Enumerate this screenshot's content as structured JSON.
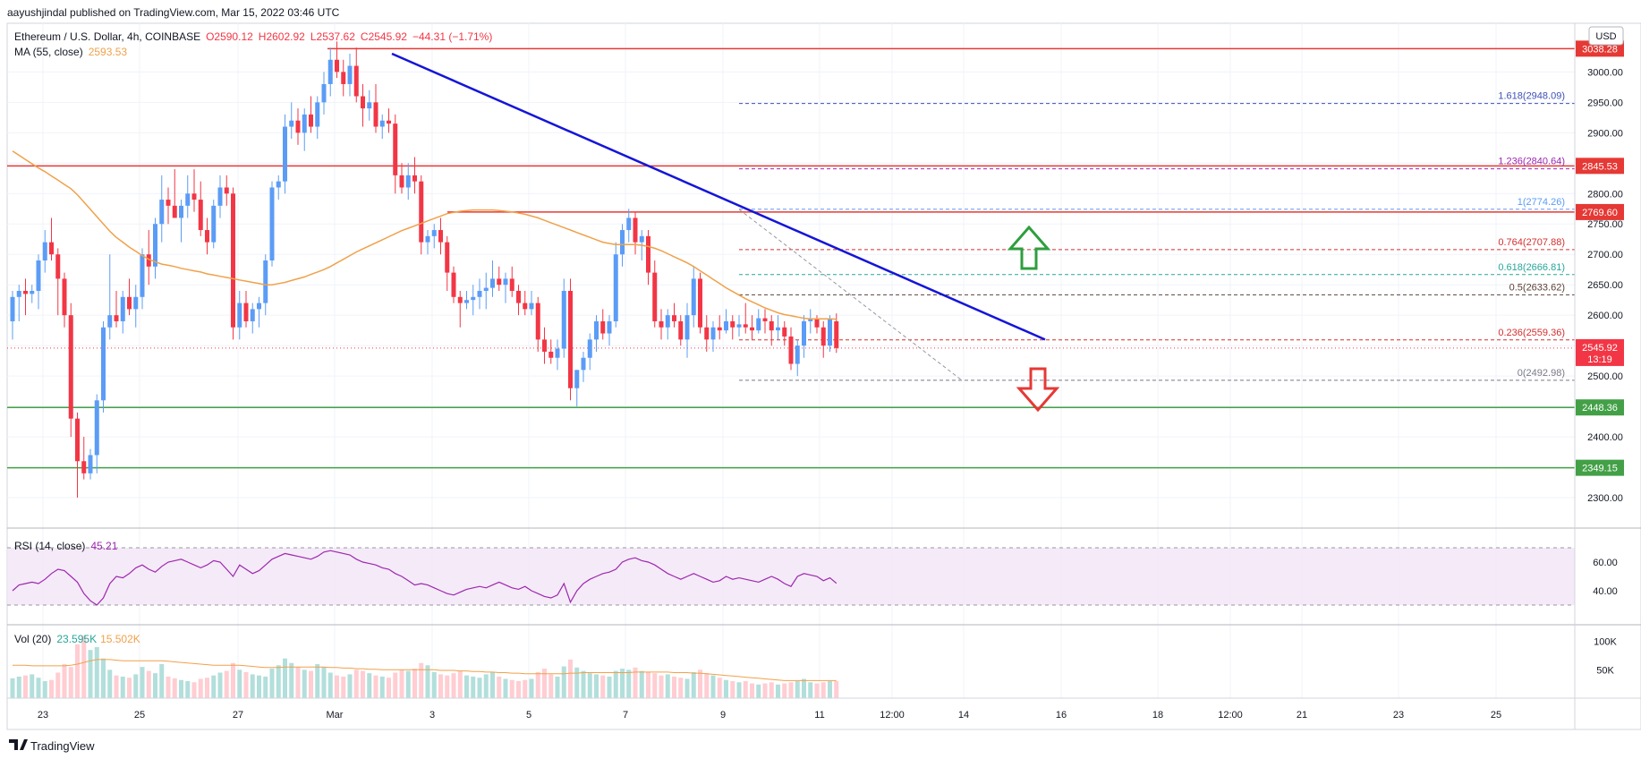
{
  "header": {
    "publish_line": "aayushjindal published on TradingView.com, Mar 15, 2022 03:46 UTC",
    "symbol_line": "Ethereum / U.S. Dollar, 4h, COINBASE",
    "open": "O2590.12",
    "high": "H2602.92",
    "low": "L2537.62",
    "close": "C2545.92",
    "change": "−44.31 (−1.71%)",
    "ma_label": "MA (55, close)",
    "ma_value": "2593.53",
    "currency_button": "USD"
  },
  "footer": {
    "brand": "TradingView"
  },
  "colors": {
    "up": "#5b9cf6",
    "down": "#f23645",
    "ma": "#f0a14a",
    "trendline": "#1515d8",
    "resistance": "#e53935",
    "support": "#43a047",
    "rsi": "#9c27b0",
    "fib_blue": "#3f51b5",
    "fib_red": "#d32f2f",
    "fib_green": "#26a69a"
  },
  "chart_data": {
    "type": "candlestick",
    "title": "Ethereum / U.S. Dollar, 4h, COINBASE",
    "ylim": [
      2250,
      3080
    ],
    "price_ticks": [
      2300,
      2350,
      2400,
      2450,
      2500,
      2550,
      2600,
      2650,
      2700,
      2750,
      2800,
      2850,
      2900,
      2950,
      3000
    ],
    "date_ticks": [
      "23",
      "25",
      "27",
      "Mar",
      "3",
      "5",
      "7",
      "9",
      "11",
      "12:00",
      "14",
      "16",
      "18",
      "12:00",
      "21",
      "23",
      "25"
    ],
    "candles": [
      [
        2590,
        2640,
        2560,
        2630
      ],
      [
        2630,
        2650,
        2590,
        2640
      ],
      [
        2640,
        2660,
        2600,
        2635
      ],
      [
        2635,
        2650,
        2620,
        2640
      ],
      [
        2640,
        2700,
        2610,
        2690
      ],
      [
        2690,
        2740,
        2670,
        2720
      ],
      [
        2720,
        2760,
        2690,
        2700
      ],
      [
        2700,
        2710,
        2600,
        2660
      ],
      [
        2660,
        2670,
        2580,
        2600
      ],
      [
        2600,
        2620,
        2400,
        2430
      ],
      [
        2430,
        2440,
        2300,
        2360
      ],
      [
        2360,
        2400,
        2330,
        2340
      ],
      [
        2340,
        2380,
        2330,
        2370
      ],
      [
        2370,
        2470,
        2340,
        2460
      ],
      [
        2460,
        2590,
        2440,
        2580
      ],
      [
        2580,
        2700,
        2560,
        2600
      ],
      [
        2600,
        2640,
        2580,
        2590
      ],
      [
        2590,
        2640,
        2570,
        2630
      ],
      [
        2630,
        2660,
        2600,
        2610
      ],
      [
        2610,
        2650,
        2580,
        2630
      ],
      [
        2630,
        2710,
        2610,
        2700
      ],
      [
        2700,
        2740,
        2650,
        2680
      ],
      [
        2680,
        2760,
        2660,
        2750
      ],
      [
        2750,
        2830,
        2720,
        2790
      ],
      [
        2790,
        2810,
        2750,
        2780
      ],
      [
        2780,
        2840,
        2760,
        2760
      ],
      [
        2760,
        2790,
        2720,
        2780
      ],
      [
        2780,
        2830,
        2760,
        2800
      ],
      [
        2800,
        2840,
        2770,
        2790
      ],
      [
        2790,
        2820,
        2730,
        2740
      ],
      [
        2740,
        2760,
        2700,
        2720
      ],
      [
        2720,
        2790,
        2710,
        2780
      ],
      [
        2780,
        2830,
        2760,
        2810
      ],
      [
        2810,
        2830,
        2780,
        2800
      ],
      [
        2800,
        2810,
        2560,
        2580
      ],
      [
        2580,
        2640,
        2560,
        2620
      ],
      [
        2620,
        2640,
        2580,
        2590
      ],
      [
        2590,
        2620,
        2570,
        2610
      ],
      [
        2610,
        2630,
        2580,
        2620
      ],
      [
        2620,
        2700,
        2600,
        2690
      ],
      [
        2690,
        2820,
        2680,
        2810
      ],
      [
        2810,
        2830,
        2790,
        2820
      ],
      [
        2820,
        2930,
        2800,
        2910
      ],
      [
        2910,
        2950,
        2890,
        2920
      ],
      [
        2920,
        2940,
        2880,
        2900
      ],
      [
        2900,
        2940,
        2870,
        2930
      ],
      [
        2930,
        2960,
        2900,
        2910
      ],
      [
        2910,
        2960,
        2890,
        2950
      ],
      [
        2950,
        3000,
        2930,
        2980
      ],
      [
        2980,
        3040,
        2960,
        3020
      ],
      [
        3020,
        3050,
        2990,
        3000
      ],
      [
        3000,
        3020,
        2960,
        2980
      ],
      [
        2980,
        3030,
        2960,
        3010
      ],
      [
        3010,
        3040,
        2950,
        2960
      ],
      [
        2960,
        2980,
        2910,
        2940
      ],
      [
        2940,
        2970,
        2920,
        2950
      ],
      [
        2950,
        2980,
        2900,
        2910
      ],
      [
        2910,
        2930,
        2890,
        2920
      ],
      [
        2920,
        2940,
        2900,
        2915
      ],
      [
        2915,
        2930,
        2800,
        2830
      ],
      [
        2830,
        2850,
        2800,
        2810
      ],
      [
        2810,
        2850,
        2790,
        2830
      ],
      [
        2830,
        2860,
        2800,
        2820
      ],
      [
        2820,
        2830,
        2700,
        2720
      ],
      [
        2720,
        2740,
        2700,
        2730
      ],
      [
        2730,
        2750,
        2710,
        2740
      ],
      [
        2740,
        2760,
        2700,
        2720
      ],
      [
        2720,
        2730,
        2640,
        2670
      ],
      [
        2670,
        2680,
        2620,
        2630
      ],
      [
        2630,
        2640,
        2580,
        2620
      ],
      [
        2620,
        2640,
        2610,
        2625
      ],
      [
        2625,
        2650,
        2600,
        2630
      ],
      [
        2630,
        2660,
        2610,
        2640
      ],
      [
        2640,
        2670,
        2610,
        2645
      ],
      [
        2645,
        2690,
        2630,
        2660
      ],
      [
        2660,
        2680,
        2640,
        2650
      ],
      [
        2650,
        2670,
        2620,
        2660
      ],
      [
        2660,
        2680,
        2630,
        2640
      ],
      [
        2640,
        2650,
        2600,
        2620
      ],
      [
        2620,
        2640,
        2600,
        2610
      ],
      [
        2610,
        2640,
        2600,
        2620
      ],
      [
        2620,
        2630,
        2540,
        2560
      ],
      [
        2560,
        2580,
        2520,
        2540
      ],
      [
        2540,
        2560,
        2520,
        2530
      ],
      [
        2530,
        2560,
        2510,
        2545
      ],
      [
        2545,
        2660,
        2530,
        2640
      ],
      [
        2640,
        2660,
        2460,
        2480
      ],
      [
        2480,
        2510,
        2450,
        2510
      ],
      [
        2510,
        2540,
        2490,
        2530
      ],
      [
        2530,
        2570,
        2510,
        2560
      ],
      [
        2560,
        2600,
        2540,
        2590
      ],
      [
        2590,
        2610,
        2560,
        2570
      ],
      [
        2570,
        2600,
        2550,
        2590
      ],
      [
        2590,
        2720,
        2580,
        2700
      ],
      [
        2700,
        2750,
        2680,
        2740
      ],
      [
        2740,
        2775,
        2720,
        2760
      ],
      [
        2760,
        2770,
        2700,
        2720
      ],
      [
        2720,
        2740,
        2690,
        2730
      ],
      [
        2730,
        2740,
        2650,
        2670
      ],
      [
        2670,
        2690,
        2580,
        2590
      ],
      [
        2590,
        2610,
        2560,
        2580
      ],
      [
        2580,
        2610,
        2560,
        2600
      ],
      [
        2600,
        2620,
        2580,
        2590
      ],
      [
        2590,
        2600,
        2550,
        2560
      ],
      [
        2560,
        2620,
        2530,
        2600
      ],
      [
        2600,
        2680,
        2580,
        2660
      ],
      [
        2660,
        2670,
        2570,
        2580
      ],
      [
        2580,
        2600,
        2540,
        2560
      ],
      [
        2560,
        2590,
        2540,
        2580
      ],
      [
        2580,
        2600,
        2560,
        2575
      ],
      [
        2575,
        2610,
        2570,
        2590
      ],
      [
        2590,
        2600,
        2560,
        2580
      ],
      [
        2580,
        2600,
        2565,
        2585
      ],
      [
        2585,
        2620,
        2570,
        2580
      ],
      [
        2580,
        2600,
        2560,
        2575
      ],
      [
        2575,
        2610,
        2570,
        2595
      ],
      [
        2595,
        2610,
        2570,
        2590
      ],
      [
        2590,
        2600,
        2550,
        2575
      ],
      [
        2575,
        2600,
        2560,
        2580
      ],
      [
        2580,
        2590,
        2550,
        2565
      ],
      [
        2565,
        2580,
        2510,
        2520
      ],
      [
        2520,
        2560,
        2500,
        2550
      ],
      [
        2550,
        2600,
        2530,
        2590
      ],
      [
        2590,
        2610,
        2570,
        2595
      ],
      [
        2595,
        2600,
        2570,
        2580
      ],
      [
        2580,
        2590,
        2530,
        2550
      ],
      [
        2550,
        2600,
        2540,
        2595
      ],
      [
        2590,
        2603,
        2538,
        2546
      ]
    ],
    "ma55": [
      2870,
      2863,
      2856,
      2849,
      2842,
      2836,
      2829,
      2822,
      2815,
      2808,
      2798,
      2786,
      2774,
      2762,
      2750,
      2738,
      2728,
      2720,
      2712,
      2705,
      2698,
      2692,
      2688,
      2684,
      2682,
      2680,
      2677,
      2675,
      2673,
      2671,
      2668,
      2666,
      2664,
      2662,
      2660,
      2658,
      2656,
      2654,
      2652,
      2650,
      2650,
      2652,
      2654,
      2657,
      2660,
      2663,
      2667,
      2671,
      2675,
      2680,
      2686,
      2692,
      2698,
      2704,
      2709,
      2714,
      2719,
      2724,
      2729,
      2734,
      2739,
      2743,
      2747,
      2751,
      2755,
      2759,
      2763,
      2767,
      2769,
      2771,
      2772,
      2773,
      2773,
      2773,
      2773,
      2772,
      2771,
      2770,
      2768,
      2766,
      2763,
      2760,
      2756,
      2752,
      2748,
      2744,
      2740,
      2736,
      2732,
      2728,
      2724,
      2720,
      2718,
      2716,
      2716,
      2716,
      2716,
      2715,
      2713,
      2710,
      2706,
      2701,
      2696,
      2691,
      2686,
      2680,
      2673,
      2666,
      2659,
      2652,
      2645,
      2639,
      2633,
      2627,
      2622,
      2617,
      2612,
      2608,
      2604,
      2601,
      2599,
      2597,
      2595,
      2594,
      2594,
      2594,
      2594,
      2593.53
    ],
    "rsi": [
      40,
      44,
      45,
      46,
      45,
      48,
      52,
      55,
      54,
      50,
      46,
      38,
      33,
      30,
      35,
      45,
      50,
      49,
      52,
      56,
      58,
      55,
      53,
      57,
      60,
      61,
      62,
      60,
      58,
      56,
      58,
      61,
      60,
      55,
      50,
      58,
      55,
      52,
      54,
      58,
      62,
      64,
      66,
      65,
      64,
      63,
      62,
      64,
      67,
      68,
      67,
      66,
      65,
      62,
      60,
      59,
      58,
      56,
      55,
      52,
      50,
      47,
      44,
      45,
      44,
      42,
      40,
      38,
      37,
      39,
      41,
      42,
      43,
      42,
      44,
      46,
      44,
      42,
      41,
      43,
      40,
      38,
      36,
      35,
      37,
      45,
      32,
      40,
      45,
      48,
      50,
      52,
      53,
      55,
      60,
      62,
      63,
      61,
      60,
      58,
      55,
      52,
      50,
      48,
      50,
      52,
      50,
      48,
      46,
      47,
      50,
      48,
      49,
      48,
      47,
      46,
      48,
      50,
      48,
      45,
      43,
      50,
      52,
      51,
      50,
      47,
      49,
      45.21
    ],
    "volume": [
      35,
      38,
      40,
      42,
      36,
      30,
      32,
      45,
      60,
      55,
      95,
      110,
      85,
      90,
      70,
      50,
      40,
      38,
      36,
      42,
      55,
      48,
      44,
      60,
      38,
      35,
      32,
      30,
      28,
      34,
      36,
      40,
      45,
      48,
      62,
      50,
      46,
      42,
      40,
      38,
      52,
      58,
      70,
      62,
      55,
      50,
      48,
      60,
      55,
      45,
      40,
      38,
      42,
      50,
      48,
      44,
      40,
      38,
      36,
      45,
      50,
      48,
      52,
      62,
      58,
      46,
      42,
      40,
      44,
      48,
      40,
      38,
      36,
      42,
      46,
      38,
      34,
      32,
      30,
      32,
      34,
      46,
      52,
      42,
      38,
      56,
      68,
      54,
      48,
      44,
      42,
      40,
      38,
      48,
      52,
      50,
      54,
      48,
      46,
      44,
      40,
      42,
      38,
      36,
      34,
      46,
      50,
      44,
      40,
      36,
      32,
      30,
      28,
      30,
      26,
      24,
      26,
      28,
      24,
      26,
      28,
      30,
      34,
      28,
      26,
      28,
      30,
      30
    ],
    "volume_ma": [
      58,
      58,
      58,
      57,
      57,
      57,
      57,
      57,
      57,
      58,
      60,
      63,
      66,
      68,
      68,
      68,
      67,
      66,
      66,
      66,
      66,
      66,
      66,
      66,
      65,
      64,
      63,
      62,
      61,
      60,
      59,
      58,
      58,
      58,
      58,
      58,
      57,
      56,
      55,
      54,
      54,
      54,
      55,
      55,
      55,
      55,
      55,
      55,
      55,
      54,
      54,
      53,
      53,
      52,
      52,
      51,
      51,
      50,
      50,
      50,
      50,
      50,
      50,
      50,
      50,
      50,
      49,
      49,
      49,
      48,
      48,
      47,
      47,
      46,
      46,
      45,
      45,
      44,
      44,
      43,
      43,
      43,
      43,
      43,
      43,
      43,
      44,
      44,
      45,
      45,
      45,
      45,
      45,
      45,
      45,
      45,
      46,
      46,
      46,
      46,
      46,
      46,
      45,
      45,
      45,
      44,
      44,
      43,
      42,
      41,
      40,
      39,
      38,
      37,
      36,
      35,
      34,
      33,
      32,
      31,
      31,
      31,
      31,
      31,
      31,
      31,
      31,
      31
    ],
    "levels": {
      "resistance": [
        {
          "price": 3038.28,
          "label": "3038.28"
        },
        {
          "price": 2845.53,
          "label": "2845.53"
        },
        {
          "price": 2769.6,
          "label": "2769.60"
        }
      ],
      "support": [
        {
          "price": 2448.36,
          "label": "2448.36"
        },
        {
          "price": 2349.15,
          "label": "2349.15"
        }
      ],
      "current": {
        "price": 2545.92,
        "label": "2545.92",
        "countdown": "13:19"
      }
    },
    "fibonacci": [
      {
        "ratio": "1.618",
        "price": 2948.09,
        "label": "1.618(2948.09)",
        "color": "#3f51b5"
      },
      {
        "ratio": "1.236",
        "price": 2840.64,
        "label": "1.236(2840.64)",
        "color": "#9c27b0"
      },
      {
        "ratio": "1",
        "price": 2774.26,
        "label": "1(2774.26)",
        "color": "#5b9cf6"
      },
      {
        "ratio": "0.764",
        "price": 2707.88,
        "label": "0.764(2707.88)",
        "color": "#d32f2f"
      },
      {
        "ratio": "0.618",
        "price": 2666.81,
        "label": "0.618(2666.81)",
        "color": "#26a69a"
      },
      {
        "ratio": "0.5",
        "price": 2633.62,
        "label": "0.5(2633.62)",
        "color": "#5d4037"
      },
      {
        "ratio": "0.236",
        "price": 2559.36,
        "label": "0.236(2559.36)",
        "color": "#d32f2f"
      },
      {
        "ratio": "0",
        "price": 2492.98,
        "label": "0(2492.98)",
        "color": "#787b86"
      }
    ],
    "trendline": {
      "from_price": 3030,
      "to_price": 2560
    },
    "rsi_panel": {
      "label": "RSI (14, close)",
      "value": "45.21",
      "ticks": [
        "60.00",
        "40.00"
      ],
      "upper": 70,
      "lower": 30
    },
    "volume_panel": {
      "label": "Vol (20)",
      "value1": "23.595K",
      "value2": "15.502K",
      "ticks": [
        "100K",
        "50K"
      ]
    }
  }
}
